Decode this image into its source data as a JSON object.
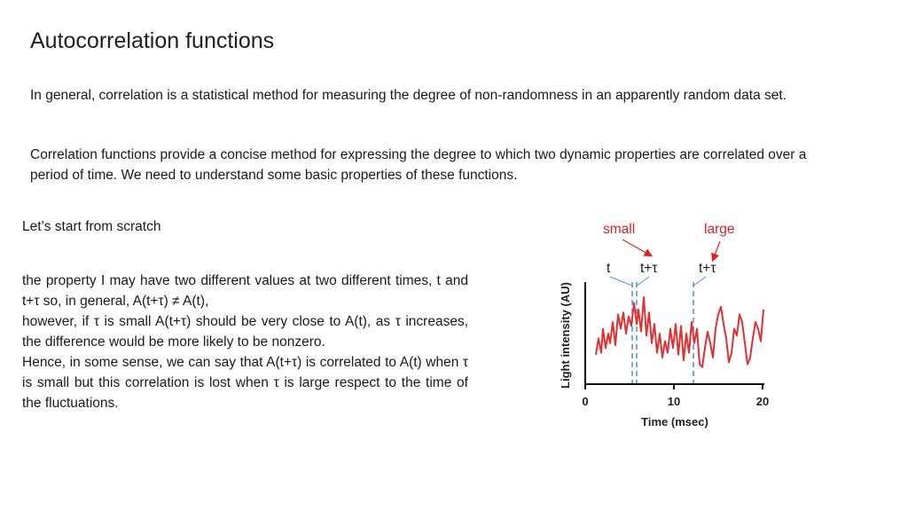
{
  "title": "Autocorrelation functions",
  "paragraphs": [
    "In general, correlation is a statistical method for measuring the degree of non-randomness in an apparently random data set.",
    "Correlation functions provide a concise method for expressing the degree to which  two dynamic properties are correlated over a period of time. We need to understand some basic properties of these functions."
  ],
  "intro": "Let’s start from scratch",
  "body_lines": [
    "the property I may have two different values at two different times, t and t+τ so, in general, A(t+τ) ≠ A(t),",
    "however, if  τ is small A(t+τ) should be very close to A(t), as τ increases, the difference would be more likely to be nonzero.",
    "Hence, in some sense, we can say that A(t+τ) is correlated to A(t) when τ is small but this correlation is lost when τ is large respect to the time of the fluctuations."
  ],
  "annotations": {
    "small": "small",
    "large": "large",
    "t": "t",
    "t_tau_small": "t+τ",
    "t_tau_large": "t+τ"
  },
  "colors": {
    "signal": "#e03030",
    "marker": "#4a90d9",
    "annotation": "#e02020"
  },
  "chart_data": {
    "type": "line",
    "title": "",
    "xlabel": "Time (msec)",
    "ylabel": "Light intensity (AU)",
    "xlim": [
      0,
      20
    ],
    "x_ticks": [
      0,
      10,
      20
    ],
    "tau_markers": {
      "t": 5.3,
      "t_plus_tau_small": 5.8,
      "t_plus_tau_large": 12.2
    },
    "series": [
      {
        "name": "signal",
        "x": [
          1.2,
          1.5,
          1.8,
          2.0,
          2.3,
          2.6,
          2.8,
          3.1,
          3.4,
          3.7,
          4.0,
          4.3,
          4.6,
          4.9,
          5.2,
          5.5,
          5.8,
          6.0,
          6.3,
          6.6,
          6.9,
          7.2,
          7.5,
          7.8,
          8.1,
          8.4,
          8.7,
          9.0,
          9.3,
          9.6,
          9.9,
          10.2,
          10.5,
          10.8,
          11.1,
          11.4,
          11.7,
          12.0,
          12.3,
          12.6,
          12.9,
          13.2,
          13.5,
          13.8,
          14.1,
          14.4,
          14.7,
          15.0,
          15.3,
          15.6,
          15.9,
          16.2,
          16.5,
          16.8,
          17.1,
          17.4,
          17.7,
          18.0,
          18.3,
          18.6,
          18.9,
          19.2,
          19.5,
          19.8,
          20.1
        ],
        "y": [
          0.28,
          0.45,
          0.3,
          0.55,
          0.35,
          0.5,
          0.4,
          0.62,
          0.38,
          0.7,
          0.55,
          0.72,
          0.5,
          0.68,
          0.58,
          0.82,
          0.6,
          0.75,
          0.52,
          0.88,
          0.48,
          0.72,
          0.4,
          0.6,
          0.3,
          0.5,
          0.25,
          0.42,
          0.3,
          0.55,
          0.35,
          0.6,
          0.28,
          0.58,
          0.22,
          0.5,
          0.3,
          0.62,
          0.4,
          0.55,
          0.18,
          0.15,
          0.35,
          0.52,
          0.4,
          0.25,
          0.55,
          0.7,
          0.78,
          0.6,
          0.45,
          0.2,
          0.3,
          0.55,
          0.48,
          0.7,
          0.62,
          0.4,
          0.18,
          0.25,
          0.45,
          0.62,
          0.55,
          0.42,
          0.75
        ]
      }
    ]
  }
}
